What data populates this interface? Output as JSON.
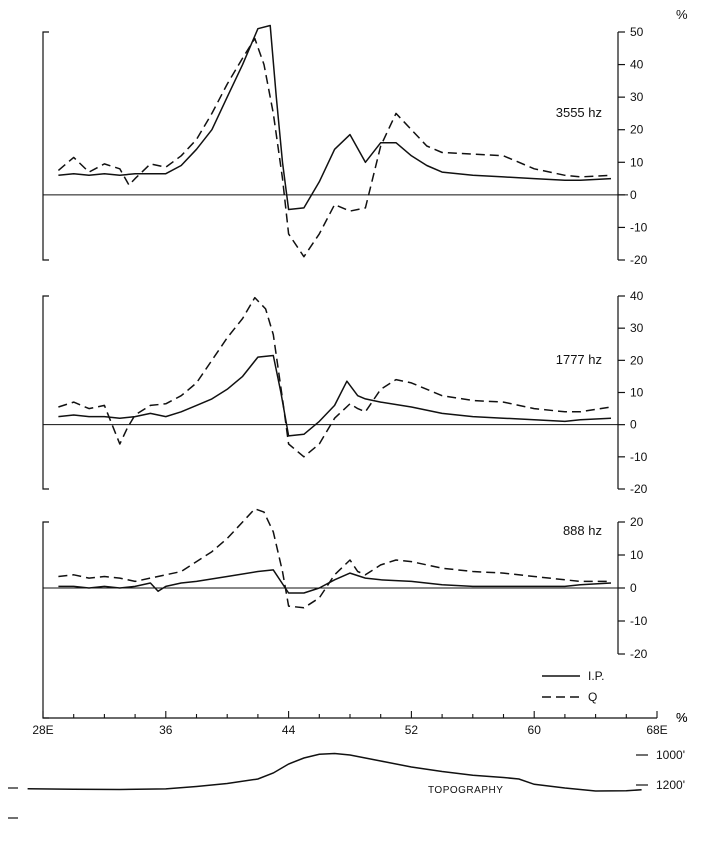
{
  "chart_data": [
    {
      "type": "line",
      "freq_label": "3555 hz",
      "unit": "%",
      "xlim": [
        28,
        68
      ],
      "ylim": [
        -20,
        50
      ],
      "right_ticks": [
        50,
        40,
        30,
        20,
        10,
        0,
        -10,
        -20
      ],
      "series": [
        {
          "legend_ref": "I.P.",
          "style": "solid",
          "points": [
            [
              29,
              6
            ],
            [
              30,
              6.5
            ],
            [
              31,
              6
            ],
            [
              32,
              6.5
            ],
            [
              33,
              6
            ],
            [
              34,
              6.5
            ],
            [
              35,
              6.5
            ],
            [
              36,
              6.5
            ],
            [
              37,
              9
            ],
            [
              38,
              14
            ],
            [
              39,
              20
            ],
            [
              40,
              30
            ],
            [
              41,
              40
            ],
            [
              42,
              51
            ],
            [
              42.8,
              52
            ],
            [
              43.2,
              30
            ],
            [
              43.6,
              10
            ],
            [
              44,
              -4.5
            ],
            [
              45,
              -4
            ],
            [
              46,
              4
            ],
            [
              47,
              14
            ],
            [
              48,
              18.5
            ],
            [
              49,
              10
            ],
            [
              50,
              16
            ],
            [
              51,
              16
            ],
            [
              52,
              12
            ],
            [
              53,
              9
            ],
            [
              54,
              7
            ],
            [
              56,
              6
            ],
            [
              58,
              5.5
            ],
            [
              60,
              5
            ],
            [
              62,
              4.5
            ],
            [
              63,
              4.5
            ],
            [
              65,
              5
            ]
          ]
        },
        {
          "legend_ref": "Q",
          "style": "dashed",
          "points": [
            [
              29,
              7.5
            ],
            [
              30,
              11.5
            ],
            [
              31,
              7
            ],
            [
              32,
              9.5
            ],
            [
              33,
              8
            ],
            [
              33.6,
              3
            ],
            [
              34,
              5
            ],
            [
              35,
              9.5
            ],
            [
              36,
              8.5
            ],
            [
              37,
              12
            ],
            [
              38,
              17
            ],
            [
              39,
              25
            ],
            [
              40,
              34
            ],
            [
              41,
              42
            ],
            [
              41.8,
              48
            ],
            [
              42.4,
              40
            ],
            [
              43,
              25
            ],
            [
              43.6,
              5
            ],
            [
              44,
              -12
            ],
            [
              45,
              -19
            ],
            [
              46,
              -12
            ],
            [
              47,
              -3
            ],
            [
              48,
              -5
            ],
            [
              49,
              -4
            ],
            [
              50,
              15
            ],
            [
              51,
              25
            ],
            [
              52,
              20
            ],
            [
              53,
              15
            ],
            [
              54,
              13
            ],
            [
              56,
              12.5
            ],
            [
              58,
              12
            ],
            [
              60,
              8
            ],
            [
              62,
              6
            ],
            [
              63,
              5.5
            ],
            [
              65,
              6
            ]
          ]
        }
      ]
    },
    {
      "type": "line",
      "freq_label": "1777 hz",
      "unit": "",
      "xlim": [
        28,
        68
      ],
      "ylim": [
        -20,
        40
      ],
      "right_ticks": [
        40,
        30,
        20,
        10,
        0,
        -10,
        -20
      ],
      "series": [
        {
          "legend_ref": "I.P.",
          "style": "solid",
          "points": [
            [
              29,
              2.5
            ],
            [
              30,
              3
            ],
            [
              31,
              2.5
            ],
            [
              32,
              2.5
            ],
            [
              33,
              2
            ],
            [
              34,
              2.5
            ],
            [
              35,
              3.5
            ],
            [
              36,
              2.5
            ],
            [
              37,
              4
            ],
            [
              38,
              6
            ],
            [
              39,
              8
            ],
            [
              40,
              11
            ],
            [
              41,
              15
            ],
            [
              42,
              21
            ],
            [
              43,
              21.5
            ],
            [
              43.5,
              10
            ],
            [
              44,
              -3.5
            ],
            [
              45,
              -3
            ],
            [
              46,
              1
            ],
            [
              47,
              6
            ],
            [
              47.8,
              13.5
            ],
            [
              48.5,
              9
            ],
            [
              49,
              8
            ],
            [
              50,
              7
            ],
            [
              52,
              5.5
            ],
            [
              54,
              3.5
            ],
            [
              56,
              2.5
            ],
            [
              58,
              2
            ],
            [
              60,
              1.5
            ],
            [
              62,
              1
            ],
            [
              63,
              1.5
            ],
            [
              65,
              2
            ]
          ]
        },
        {
          "legend_ref": "Q",
          "style": "dashed",
          "points": [
            [
              29,
              5.5
            ],
            [
              30,
              7
            ],
            [
              31,
              5
            ],
            [
              32,
              6
            ],
            [
              32.5,
              0
            ],
            [
              33,
              -6
            ],
            [
              33.5,
              -1
            ],
            [
              34,
              3
            ],
            [
              35,
              6
            ],
            [
              36,
              6.5
            ],
            [
              37,
              9
            ],
            [
              38,
              13
            ],
            [
              39,
              20
            ],
            [
              40,
              27
            ],
            [
              41,
              33
            ],
            [
              41.8,
              39.5
            ],
            [
              42.5,
              36
            ],
            [
              43,
              28
            ],
            [
              43.6,
              8
            ],
            [
              44,
              -6
            ],
            [
              45,
              -10
            ],
            [
              46,
              -6
            ],
            [
              47,
              2
            ],
            [
              48,
              6.5
            ],
            [
              48.5,
              5
            ],
            [
              49,
              4
            ],
            [
              50,
              11
            ],
            [
              51,
              14
            ],
            [
              52,
              13
            ],
            [
              54,
              9
            ],
            [
              56,
              7.5
            ],
            [
              58,
              7
            ],
            [
              60,
              5
            ],
            [
              62,
              4
            ],
            [
              63,
              4
            ],
            [
              65,
              5.5
            ]
          ]
        }
      ]
    },
    {
      "type": "line",
      "freq_label": "888 hz",
      "unit": "%",
      "xlim": [
        28,
        68
      ],
      "ylim": [
        -20,
        20
      ],
      "right_ticks": [
        20,
        10,
        0,
        -10,
        -20
      ],
      "series": [
        {
          "legend_ref": "I.P.",
          "style": "solid",
          "points": [
            [
              29,
              0.5
            ],
            [
              30,
              0.5
            ],
            [
              31,
              0
            ],
            [
              32,
              0.5
            ],
            [
              33,
              0
            ],
            [
              34,
              0.5
            ],
            [
              35,
              1.5
            ],
            [
              35.5,
              -1
            ],
            [
              36,
              0.5
            ],
            [
              37,
              1.5
            ],
            [
              38,
              2
            ],
            [
              40,
              3.5
            ],
            [
              42,
              5
            ],
            [
              43,
              5.5
            ],
            [
              44,
              -1.5
            ],
            [
              45,
              -1.5
            ],
            [
              46,
              0
            ],
            [
              47,
              2.5
            ],
            [
              48,
              4.5
            ],
            [
              49,
              3
            ],
            [
              50,
              2.5
            ],
            [
              52,
              2
            ],
            [
              54,
              1
            ],
            [
              56,
              0.5
            ],
            [
              58,
              0.5
            ],
            [
              60,
              0.5
            ],
            [
              62,
              0.5
            ],
            [
              63,
              1
            ],
            [
              65,
              1.5
            ]
          ]
        },
        {
          "legend_ref": "Q",
          "style": "dashed",
          "points": [
            [
              29,
              3.5
            ],
            [
              30,
              4
            ],
            [
              31,
              3
            ],
            [
              32,
              3.5
            ],
            [
              33,
              3
            ],
            [
              34,
              2
            ],
            [
              35,
              3
            ],
            [
              36,
              4
            ],
            [
              37,
              5
            ],
            [
              38,
              8
            ],
            [
              39,
              11
            ],
            [
              40,
              15
            ],
            [
              41,
              20
            ],
            [
              41.8,
              24
            ],
            [
              42.4,
              23
            ],
            [
              43,
              17
            ],
            [
              43.6,
              5
            ],
            [
              44,
              -5.5
            ],
            [
              45,
              -6
            ],
            [
              46,
              -3
            ],
            [
              47,
              4
            ],
            [
              48,
              8.5
            ],
            [
              48.5,
              5
            ],
            [
              49,
              4
            ],
            [
              50,
              7
            ],
            [
              51,
              8.5
            ],
            [
              52,
              8
            ],
            [
              54,
              6
            ],
            [
              56,
              5
            ],
            [
              58,
              4.5
            ],
            [
              60,
              3.5
            ],
            [
              62,
              2.5
            ],
            [
              63,
              2
            ],
            [
              65,
              2
            ]
          ]
        }
      ]
    }
  ],
  "x_axis": {
    "tick_labels": [
      {
        "value": 28,
        "label": "28E"
      },
      {
        "value": 36,
        "label": "36"
      },
      {
        "value": 44,
        "label": "44"
      },
      {
        "value": 52,
        "label": "52"
      },
      {
        "value": 60,
        "label": "60"
      },
      {
        "value": 68,
        "label": "68E"
      }
    ]
  },
  "legend": {
    "placement": "bottom-right of lowest panel",
    "entries": [
      {
        "label": "I.P.",
        "style": "solid"
      },
      {
        "label": "Q",
        "style": "dashed"
      }
    ]
  },
  "bottom_unit": "%",
  "topography": {
    "label": "TOPOGRAPHY",
    "elevation_ticks": [
      {
        "value": 1200,
        "label": "1200'"
      },
      {
        "value": 1000,
        "label": "1000'"
      }
    ],
    "profile": [
      [
        27,
        1225
      ],
      [
        30,
        1228
      ],
      [
        33,
        1230
      ],
      [
        36,
        1226
      ],
      [
        38,
        1210
      ],
      [
        40,
        1190
      ],
      [
        42,
        1160
      ],
      [
        43,
        1120
      ],
      [
        44,
        1060
      ],
      [
        45,
        1020
      ],
      [
        46,
        995
      ],
      [
        47,
        990
      ],
      [
        48,
        1000
      ],
      [
        50,
        1040
      ],
      [
        52,
        1080
      ],
      [
        54,
        1110
      ],
      [
        56,
        1135
      ],
      [
        58,
        1150
      ],
      [
        59,
        1160
      ],
      [
        60,
        1195
      ],
      [
        62,
        1220
      ],
      [
        64,
        1240
      ],
      [
        66,
        1238
      ],
      [
        67,
        1232
      ]
    ]
  },
  "colors": {
    "ink": "#111111",
    "background": "#ffffff"
  }
}
